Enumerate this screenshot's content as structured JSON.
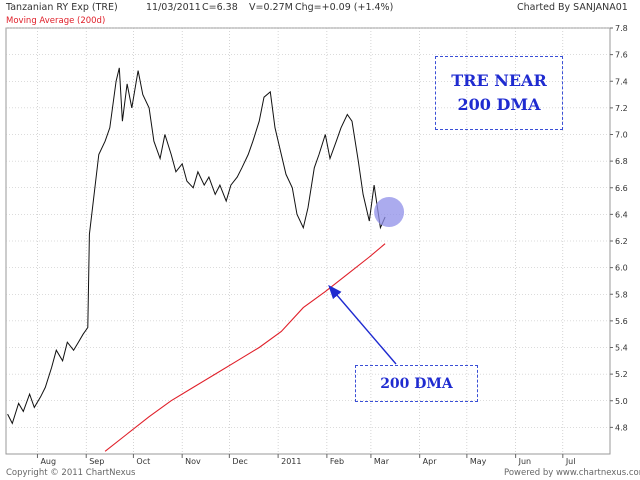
{
  "header": {
    "name": "Tanzanian RY Exp (TRE)",
    "date": "11/03/2011",
    "close": "C=6.38",
    "volume": "V=0.27M",
    "change": "Chg=+0.09 (+1.4%)",
    "credit": "Charted By SANJANA01"
  },
  "legend": {
    "ma_label": "Moving Average (200d)"
  },
  "annotations": {
    "tre_near_line1": "TRE NEAR",
    "tre_near_line2": "200 DMA",
    "dma_label": "200 DMA"
  },
  "footer": {
    "copyright": "Copyright © 2011 ChartNexus",
    "powered": "Powered by www.chartnexus.com"
  },
  "colors": {
    "price": "#111111",
    "moving_average": "#e0202a",
    "annotation": "#1f2bd0",
    "highlight": "#8f8fe8",
    "grid": "#b8b8b8"
  },
  "chart_data": {
    "type": "line",
    "xlabel": "",
    "ylabel": "",
    "months": [
      "Aug",
      "Sep",
      "Oct",
      "Nov",
      "Dec",
      "2011",
      "Feb",
      "Mar",
      "Apr",
      "May",
      "Jun",
      "Jul"
    ],
    "yticks": [
      "4.8",
      "5.0",
      "5.2",
      "5.4",
      "5.6",
      "5.8",
      "6.0",
      "6.2",
      "6.4",
      "6.6",
      "6.8",
      "7.0",
      "7.2",
      "7.4",
      "7.6",
      "7.8"
    ],
    "ylim": [
      4.6,
      7.8
    ],
    "grid": true,
    "series": [
      {
        "name": "Tanzanian RY Exp (TRE)",
        "points": [
          [
            "2010-07-13",
            4.9
          ],
          [
            "2010-07-16",
            4.83
          ],
          [
            "2010-07-20",
            4.98
          ],
          [
            "2010-07-23",
            4.92
          ],
          [
            "2010-07-27",
            5.05
          ],
          [
            "2010-07-30",
            4.95
          ],
          [
            "2010-08-03",
            5.03
          ],
          [
            "2010-08-06",
            5.1
          ],
          [
            "2010-08-10",
            5.25
          ],
          [
            "2010-08-13",
            5.38
          ],
          [
            "2010-08-17",
            5.3
          ],
          [
            "2010-08-20",
            5.44
          ],
          [
            "2010-08-24",
            5.38
          ],
          [
            "2010-08-27",
            5.44
          ],
          [
            "2010-08-30",
            5.5
          ],
          [
            "2010-09-02",
            5.55
          ],
          [
            "2010-09-03",
            6.25
          ],
          [
            "2010-09-06",
            6.55
          ],
          [
            "2010-09-09",
            6.85
          ],
          [
            "2010-09-13",
            6.95
          ],
          [
            "2010-09-16",
            7.05
          ],
          [
            "2010-09-20",
            7.4
          ],
          [
            "2010-09-22",
            7.5
          ],
          [
            "2010-09-24",
            7.1
          ],
          [
            "2010-09-27",
            7.38
          ],
          [
            "2010-09-30",
            7.2
          ],
          [
            "2010-10-04",
            7.48
          ],
          [
            "2010-10-07",
            7.3
          ],
          [
            "2010-10-11",
            7.2
          ],
          [
            "2010-10-14",
            6.95
          ],
          [
            "2010-10-18",
            6.82
          ],
          [
            "2010-10-21",
            7.0
          ],
          [
            "2010-10-25",
            6.85
          ],
          [
            "2010-10-28",
            6.72
          ],
          [
            "2010-11-01",
            6.78
          ],
          [
            "2010-11-04",
            6.65
          ],
          [
            "2010-11-08",
            6.6
          ],
          [
            "2010-11-11",
            6.72
          ],
          [
            "2010-11-15",
            6.62
          ],
          [
            "2010-11-18",
            6.68
          ],
          [
            "2010-11-22",
            6.55
          ],
          [
            "2010-11-25",
            6.62
          ],
          [
            "2010-11-29",
            6.5
          ],
          [
            "2010-12-02",
            6.62
          ],
          [
            "2010-12-06",
            6.68
          ],
          [
            "2010-12-09",
            6.75
          ],
          [
            "2010-12-13",
            6.85
          ],
          [
            "2010-12-16",
            6.95
          ],
          [
            "2010-12-20",
            7.1
          ],
          [
            "2010-12-23",
            7.28
          ],
          [
            "2010-12-27",
            7.32
          ],
          [
            "2010-12-30",
            7.05
          ],
          [
            "2011-01-03",
            6.85
          ],
          [
            "2011-01-06",
            6.7
          ],
          [
            "2011-01-10",
            6.6
          ],
          [
            "2011-01-13",
            6.4
          ],
          [
            "2011-01-17",
            6.3
          ],
          [
            "2011-01-20",
            6.45
          ],
          [
            "2011-01-24",
            6.75
          ],
          [
            "2011-01-27",
            6.85
          ],
          [
            "2011-01-31",
            7.0
          ],
          [
            "2011-02-03",
            6.82
          ],
          [
            "2011-02-07",
            6.95
          ],
          [
            "2011-02-10",
            7.05
          ],
          [
            "2011-02-14",
            7.15
          ],
          [
            "2011-02-17",
            7.1
          ],
          [
            "2011-02-21",
            6.8
          ],
          [
            "2011-02-24",
            6.55
          ],
          [
            "2011-02-28",
            6.35
          ],
          [
            "2011-03-03",
            6.62
          ],
          [
            "2011-03-07",
            6.3
          ],
          [
            "2011-03-10",
            6.38
          ]
        ]
      },
      {
        "name": "Moving Average (200d)",
        "points": [
          [
            "2010-09-13",
            4.62
          ],
          [
            "2010-09-27",
            4.75
          ],
          [
            "2010-10-11",
            4.88
          ],
          [
            "2010-10-25",
            5.0
          ],
          [
            "2010-11-08",
            5.1
          ],
          [
            "2010-11-22",
            5.2
          ],
          [
            "2010-12-06",
            5.3
          ],
          [
            "2010-12-20",
            5.4
          ],
          [
            "2011-01-03",
            5.52
          ],
          [
            "2011-01-17",
            5.7
          ],
          [
            "2011-01-31",
            5.82
          ],
          [
            "2011-02-14",
            5.95
          ],
          [
            "2011-02-28",
            6.08
          ],
          [
            "2011-03-10",
            6.18
          ]
        ]
      }
    ]
  }
}
